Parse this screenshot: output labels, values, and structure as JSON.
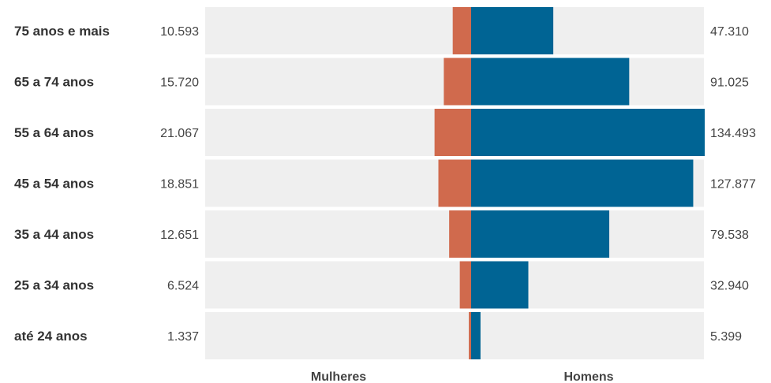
{
  "chart_data": {
    "type": "bar",
    "orientation": "horizontal",
    "layout": "population-pyramid",
    "categories": [
      "75 anos e mais",
      "65 a 74 anos",
      "55 a 64 anos",
      "45 a 54 anos",
      "35 a 44 anos",
      "25 a 34 anos",
      "até 24 anos"
    ],
    "series": [
      {
        "name": "Mulheres",
        "side": "left",
        "color": "#d06a4d",
        "values": [
          10593,
          15720,
          21067,
          18851,
          12651,
          6524,
          1337
        ],
        "labels": [
          "10.593",
          "15.720",
          "21.067",
          "18.851",
          "12.651",
          "6.524",
          "1.337"
        ]
      },
      {
        "name": "Homens",
        "side": "right",
        "color": "#006494",
        "values": [
          47310,
          91025,
          134493,
          127877,
          79538,
          32940,
          5399
        ],
        "labels": [
          "47.310",
          "91.025",
          "134.493",
          "127.877",
          "79.538",
          "32.940",
          "5.399"
        ]
      }
    ],
    "xlim": [
      -134493,
      134493
    ],
    "track_color": "#efefef",
    "grid": false,
    "legend": "none"
  }
}
